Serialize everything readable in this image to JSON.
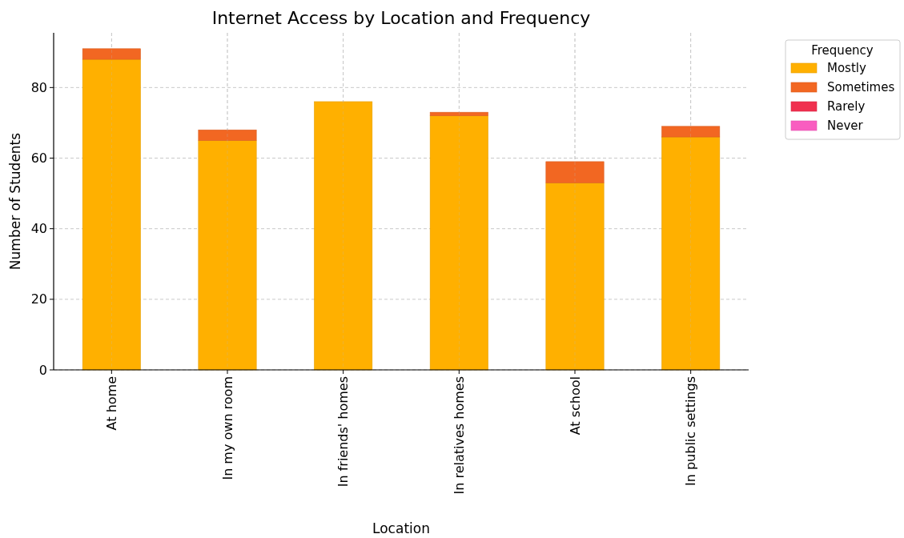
{
  "chart_data": {
    "type": "bar",
    "title": "Internet Access by Location and Frequency",
    "xlabel": "Location",
    "ylabel": "Number of Students",
    "legend_title": "Frequency",
    "categories": [
      "At home",
      "In my own room",
      "In friends' homes",
      "In relatives homes",
      "At school",
      "In public settings"
    ],
    "series": [
      {
        "name": "Mostly",
        "color": "#ffb000",
        "values": [
          88,
          65,
          76,
          72,
          53,
          66
        ]
      },
      {
        "name": "Sometimes",
        "color": "#f26722",
        "values": [
          3,
          3,
          0,
          1,
          6,
          3
        ]
      },
      {
        "name": "Rarely",
        "color": "#f0304f",
        "values": [
          0,
          0,
          0,
          0,
          0,
          0
        ]
      },
      {
        "name": "Never",
        "color": "#f95dc0",
        "values": [
          0,
          0,
          0,
          0,
          0,
          0
        ]
      }
    ],
    "stacked": true,
    "ylim": [
      0,
      95.5
    ],
    "yticks": [
      0,
      20,
      40,
      60,
      80
    ],
    "grid": true,
    "legend": "top right"
  }
}
